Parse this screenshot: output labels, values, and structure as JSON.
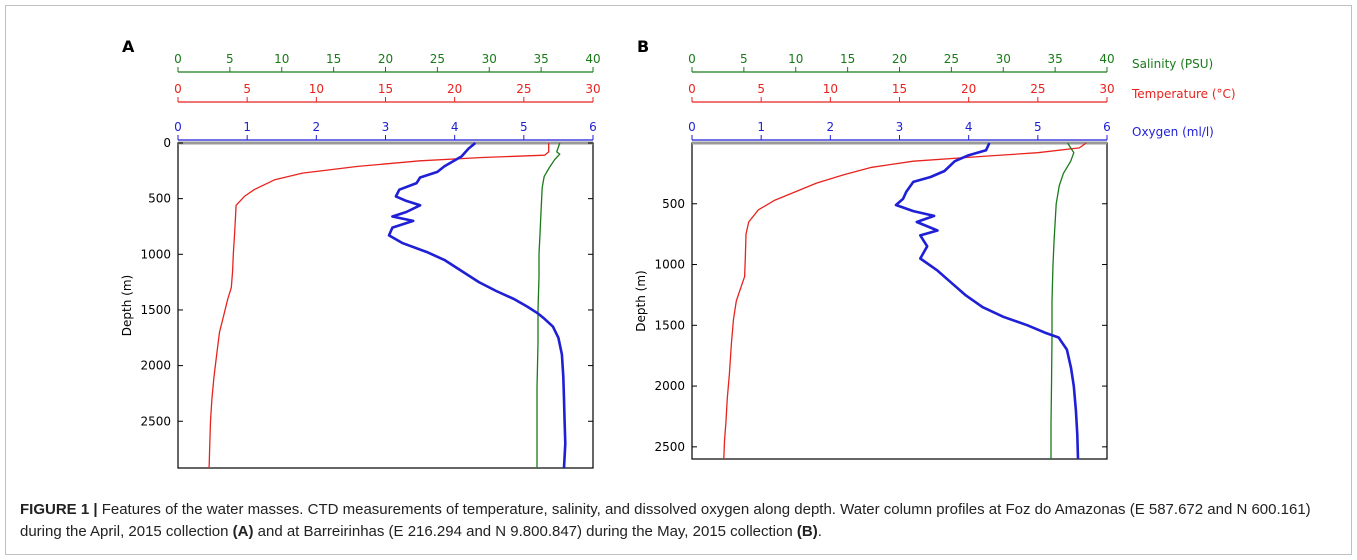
{
  "caption": {
    "label": "FIGURE 1 |",
    "text_1": " Features of the water masses. CTD measurements of temperature, salinity, and dissolved oxygen along depth. Water column profiles at Foz do Amazonas (E 587.672 and N 600.161) during the April, 2015 collection ",
    "ref_a": "(A)",
    "text_2": " and at Barreirinhas (E 216.294 and N 9.800.847) during the May, 2015 collection ",
    "ref_b": "(B)",
    "text_3": "."
  },
  "legend": {
    "salinity": "Salinity (PSU)",
    "temperature": "Temperature (°C)",
    "oxygen": "Oxygen (ml/l)"
  },
  "colors": {
    "salinity": "#1a7a1a",
    "temperature": "#e8231e",
    "oxygen": "#1f1fd6"
  },
  "chart_data": [
    {
      "type": "line",
      "panel_label": "A",
      "ylabel": "Depth (m)",
      "y_inverted": true,
      "ylim": [
        0,
        2920
      ],
      "yticks": [
        0,
        500,
        1000,
        1500,
        2000,
        2500
      ],
      "axes": [
        {
          "key": "salinity",
          "range": [
            0,
            40
          ],
          "ticks": [
            0,
            5,
            10,
            15,
            20,
            25,
            30,
            35,
            40
          ]
        },
        {
          "key": "temperature",
          "range": [
            0,
            30
          ],
          "ticks": [
            0,
            5,
            10,
            15,
            20,
            25,
            30
          ]
        },
        {
          "key": "oxygen",
          "range": [
            0,
            6
          ],
          "ticks": [
            0,
            1,
            2,
            3,
            4,
            5,
            6
          ]
        }
      ],
      "series": [
        {
          "key": "temperature",
          "points": [
            [
              26.8,
              0
            ],
            [
              26.8,
              80
            ],
            [
              26.5,
              110
            ],
            [
              22,
              130
            ],
            [
              17.5,
              160
            ],
            [
              13,
              210
            ],
            [
              9,
              270
            ],
            [
              7,
              330
            ],
            [
              5.5,
              420
            ],
            [
              4.8,
              480
            ],
            [
              4.2,
              560
            ],
            [
              4.1,
              800
            ],
            [
              4.0,
              1000
            ],
            [
              3.95,
              1150
            ],
            [
              3.85,
              1300
            ],
            [
              3.6,
              1400
            ],
            [
              3.3,
              1550
            ],
            [
              3.0,
              1700
            ],
            [
              2.8,
              1900
            ],
            [
              2.6,
              2100
            ],
            [
              2.45,
              2300
            ],
            [
              2.35,
              2500
            ],
            [
              2.3,
              2700
            ],
            [
              2.25,
              2920
            ]
          ]
        },
        {
          "key": "salinity",
          "points": [
            [
              36.8,
              0
            ],
            [
              36.5,
              80
            ],
            [
              36.8,
              100
            ],
            [
              36.3,
              150
            ],
            [
              35.8,
              220
            ],
            [
              35.3,
              300
            ],
            [
              35.1,
              400
            ],
            [
              35.0,
              600
            ],
            [
              34.9,
              800
            ],
            [
              34.8,
              1000
            ],
            [
              34.8,
              1200
            ],
            [
              34.7,
              1500
            ],
            [
              34.7,
              1800
            ],
            [
              34.6,
              2200
            ],
            [
              34.6,
              2600
            ],
            [
              34.6,
              2920
            ]
          ]
        },
        {
          "key": "oxygen",
          "points": [
            [
              4.3,
              0
            ],
            [
              4.2,
              50
            ],
            [
              4.1,
              120
            ],
            [
              3.85,
              210
            ],
            [
              3.75,
              260
            ],
            [
              3.5,
              310
            ],
            [
              3.45,
              360
            ],
            [
              3.2,
              420
            ],
            [
              3.15,
              480
            ],
            [
              3.3,
              520
            ],
            [
              3.5,
              560
            ],
            [
              3.3,
              620
            ],
            [
              3.1,
              660
            ],
            [
              3.4,
              700
            ],
            [
              3.1,
              760
            ],
            [
              3.05,
              830
            ],
            [
              3.25,
              900
            ],
            [
              3.6,
              980
            ],
            [
              3.85,
              1050
            ],
            [
              4.1,
              1150
            ],
            [
              4.35,
              1250
            ],
            [
              4.6,
              1330
            ],
            [
              4.85,
              1400
            ],
            [
              5.05,
              1470
            ],
            [
              5.2,
              1530
            ],
            [
              5.3,
              1580
            ],
            [
              5.42,
              1650
            ],
            [
              5.5,
              1750
            ],
            [
              5.55,
              1900
            ],
            [
              5.57,
              2100
            ],
            [
              5.58,
              2300
            ],
            [
              5.59,
              2500
            ],
            [
              5.6,
              2700
            ],
            [
              5.58,
              2920
            ]
          ]
        }
      ]
    },
    {
      "type": "line",
      "panel_label": "B",
      "ylabel": "Depth (m)",
      "y_inverted": true,
      "ylim": [
        0,
        2600
      ],
      "yticks": [
        500,
        1000,
        1500,
        2000,
        2500
      ],
      "axes": [
        {
          "key": "salinity",
          "range": [
            0,
            40
          ],
          "ticks": [
            0,
            5,
            10,
            15,
            20,
            25,
            30,
            35,
            40
          ]
        },
        {
          "key": "temperature",
          "range": [
            0,
            30
          ],
          "ticks": [
            0,
            5,
            10,
            15,
            20,
            25,
            30
          ]
        },
        {
          "key": "oxygen",
          "range": [
            0,
            6
          ],
          "ticks": [
            0,
            1,
            2,
            3,
            4,
            5,
            6
          ]
        }
      ],
      "series": [
        {
          "key": "temperature",
          "points": [
            [
              28.5,
              0
            ],
            [
              28,
              40
            ],
            [
              25,
              80
            ],
            [
              21,
              110
            ],
            [
              16,
              150
            ],
            [
              13,
              200
            ],
            [
              11,
              260
            ],
            [
              9,
              330
            ],
            [
              7.5,
              400
            ],
            [
              6,
              470
            ],
            [
              4.8,
              550
            ],
            [
              4.1,
              650
            ],
            [
              3.9,
              750
            ],
            [
              3.85,
              950
            ],
            [
              3.8,
              1100
            ],
            [
              3.5,
              1200
            ],
            [
              3.2,
              1300
            ],
            [
              3.0,
              1450
            ],
            [
              2.85,
              1650
            ],
            [
              2.7,
              1900
            ],
            [
              2.55,
              2100
            ],
            [
              2.45,
              2300
            ],
            [
              2.35,
              2450
            ],
            [
              2.3,
              2600
            ]
          ]
        },
        {
          "key": "salinity",
          "points": [
            [
              36.2,
              0
            ],
            [
              36.8,
              80
            ],
            [
              36.5,
              150
            ],
            [
              35.8,
              250
            ],
            [
              35.4,
              350
            ],
            [
              35.1,
              500
            ],
            [
              34.9,
              800
            ],
            [
              34.8,
              1000
            ],
            [
              34.7,
              1300
            ],
            [
              34.7,
              1600
            ],
            [
              34.65,
              2000
            ],
            [
              34.6,
              2300
            ],
            [
              34.6,
              2600
            ]
          ]
        },
        {
          "key": "oxygen",
          "points": [
            [
              4.3,
              0
            ],
            [
              4.25,
              60
            ],
            [
              4.0,
              100
            ],
            [
              3.8,
              150
            ],
            [
              3.65,
              230
            ],
            [
              3.45,
              280
            ],
            [
              3.2,
              320
            ],
            [
              3.1,
              400
            ],
            [
              3.05,
              460
            ],
            [
              2.95,
              510
            ],
            [
              3.2,
              560
            ],
            [
              3.5,
              600
            ],
            [
              3.25,
              650
            ],
            [
              3.55,
              720
            ],
            [
              3.3,
              760
            ],
            [
              3.4,
              850
            ],
            [
              3.3,
              950
            ],
            [
              3.55,
              1050
            ],
            [
              3.75,
              1150
            ],
            [
              3.95,
              1250
            ],
            [
              4.2,
              1350
            ],
            [
              4.5,
              1430
            ],
            [
              4.85,
              1500
            ],
            [
              5.1,
              1560
            ],
            [
              5.3,
              1600
            ],
            [
              5.42,
              1700
            ],
            [
              5.48,
              1850
            ],
            [
              5.52,
              2000
            ],
            [
              5.55,
              2200
            ],
            [
              5.57,
              2400
            ],
            [
              5.58,
              2600
            ]
          ]
        }
      ]
    }
  ]
}
